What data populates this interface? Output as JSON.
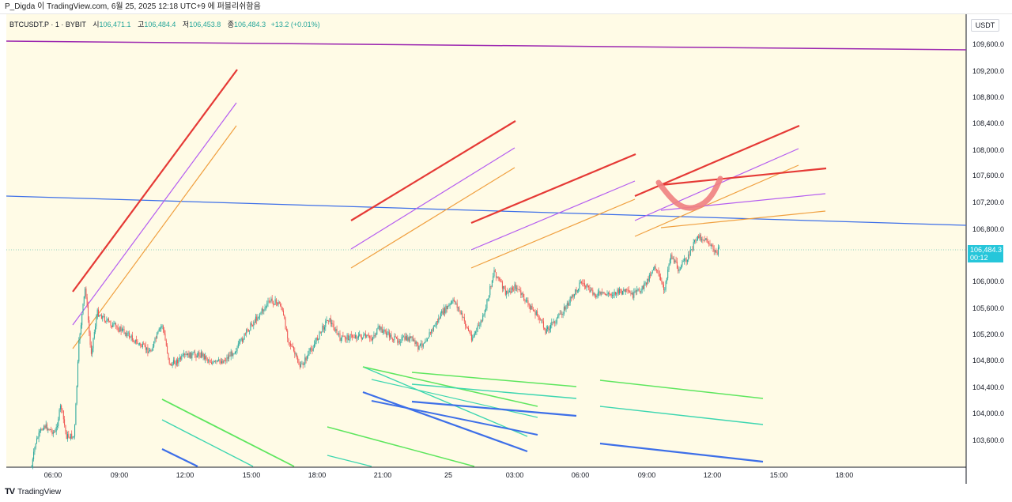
{
  "header": {
    "caption": "P_Digda 이 TradingView.com, 6월 25, 2025 12:18 UTC+9 에 퍼블리쉬함음"
  },
  "legend": {
    "symbol": "BTCUSDT.P · 1 · BYBIT",
    "open_label": "시",
    "open": "106,471.1",
    "high_label": "고",
    "high": "106,484.4",
    "low_label": "저",
    "low": "106,453.8",
    "close_label": "종",
    "close": "106,484.3",
    "change": "+13.2 (+0.01%)"
  },
  "price_axis": {
    "currency": "USDT",
    "ticks": [
      "109,600.0",
      "109,200.0",
      "108,800.0",
      "108,400.0",
      "108,000.0",
      "107,600.0",
      "107,200.0",
      "106,800.0",
      "106,000.0",
      "105,600.0",
      "105,200.0",
      "104,800.0",
      "104,400.0",
      "104,000.0",
      "103,600.0"
    ],
    "current_price": "106,484.3",
    "countdown": "00:12"
  },
  "time_axis": {
    "ticks": [
      "06:00",
      "09:00",
      "12:00",
      "15:00",
      "18:00",
      "21:00",
      "25",
      "03:00",
      "06:00",
      "09:00",
      "12:00",
      "15:00",
      "18:00"
    ]
  },
  "footer": {
    "brand": "TradingView",
    "logo_mark": "TV"
  },
  "colors": {
    "background": "#fffbe6",
    "up": "#26a69a",
    "down": "#ef5350",
    "red_line": "#e53935",
    "purple_line": "#b45cf0",
    "orange_line": "#f0a040",
    "blue_line": "#3d6fe8",
    "green_line": "#5ee65e",
    "teal_line": "#3dd6b0",
    "top_line": "#9c27b0",
    "current_price": "#26c6da"
  }
}
